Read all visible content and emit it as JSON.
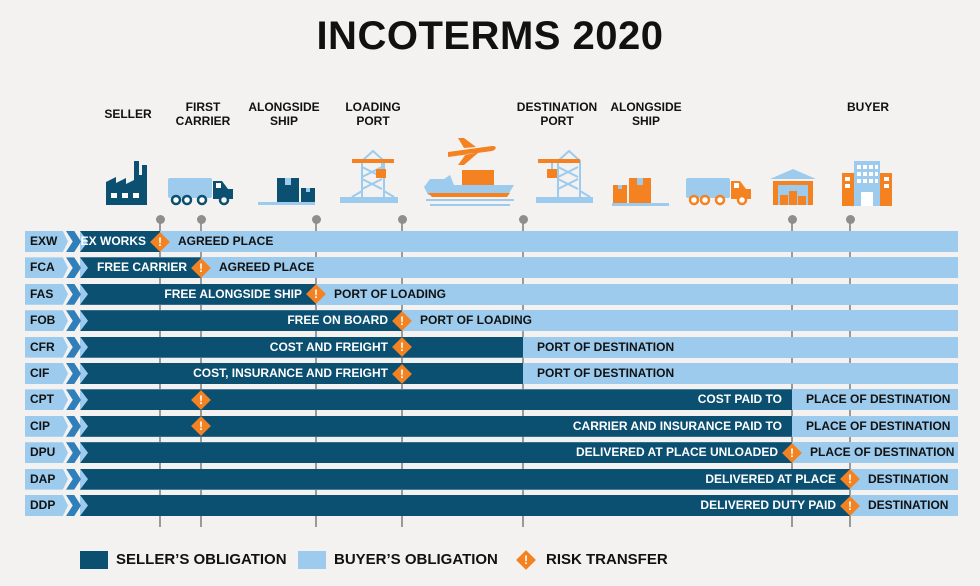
{
  "title": "INCOTERMS 2020",
  "columns": [
    {
      "label": "SELLER",
      "icon": "factory-icon"
    },
    {
      "label": "FIRST\nCARRIER",
      "icon": "truck-icon"
    },
    {
      "label": "ALONGSIDE\nSHIP",
      "icon": "boxes-icon"
    },
    {
      "label": "LOADING\nPORT",
      "icon": "crane-icon"
    },
    {
      "label": "",
      "icon": "ship-plane-icon"
    },
    {
      "label": "DESTINATION\nPORT",
      "icon": "crane-icon"
    },
    {
      "label": "ALONGSIDE\nSHIP",
      "icon": "boxes-icon"
    },
    {
      "label": "",
      "icon": "truck-icon"
    },
    {
      "label": "",
      "icon": "warehouse-icon"
    },
    {
      "label": "BUYER",
      "icon": "building-icon"
    }
  ],
  "rows": [
    {
      "code": "EXW",
      "seller": "EX WORKS",
      "buyer": "AGREED PLACE",
      "seller_until": "SELLER",
      "risk_at": "SELLER"
    },
    {
      "code": "FCA",
      "seller": "FREE CARRIER",
      "buyer": "AGREED PLACE",
      "seller_until": "FIRST CARRIER",
      "risk_at": "FIRST CARRIER"
    },
    {
      "code": "FAS",
      "seller": "FREE ALONGSIDE SHIP",
      "buyer": "PORT OF LOADING",
      "seller_until": "ALONGSIDE SHIP",
      "risk_at": "ALONGSIDE SHIP"
    },
    {
      "code": "FOB",
      "seller": "FREE ON BOARD",
      "buyer": "PORT OF LOADING",
      "seller_until": "LOADING PORT",
      "risk_at": "LOADING PORT"
    },
    {
      "code": "CFR",
      "seller": "COST AND FREIGHT",
      "buyer": "PORT OF DESTINATION",
      "seller_until": "DESTINATION PORT",
      "risk_at": "LOADING PORT"
    },
    {
      "code": "CIF",
      "seller": "COST, INSURANCE AND FREIGHT",
      "buyer": "PORT OF DESTINATION",
      "seller_until": "DESTINATION PORT",
      "risk_at": "LOADING PORT"
    },
    {
      "code": "CPT",
      "seller": "COST PAID TO",
      "buyer": "PLACE OF DESTINATION",
      "seller_until": "WAREHOUSE",
      "risk_at": "FIRST CARRIER"
    },
    {
      "code": "CIP",
      "seller": "CARRIER AND INSURANCE PAID TO",
      "buyer": "PLACE OF DESTINATION",
      "seller_until": "WAREHOUSE",
      "risk_at": "FIRST CARRIER"
    },
    {
      "code": "DPU",
      "seller": "DELIVERED AT PLACE UNLOADED",
      "buyer": "PLACE OF DESTINATION",
      "seller_until": "WAREHOUSE",
      "risk_at": "WAREHOUSE"
    },
    {
      "code": "DAP",
      "seller": "DELIVERED AT PLACE",
      "buyer": "DESTINATION",
      "seller_until": "BUYER",
      "risk_at": "BUYER"
    },
    {
      "code": "DDP",
      "seller": "DELIVERED DUTY PAID",
      "buyer": "DESTINATION",
      "seller_until": "BUYER",
      "risk_at": "BUYER"
    }
  ],
  "legend": {
    "seller": "SELLER’S OBLIGATION",
    "buyer": "BUYER’S OBLIGATION",
    "risk": "RISK TRANSFER",
    "risk_symbol": "!"
  },
  "colors": {
    "seller": "#0b4f71",
    "buyer": "#9ccbee",
    "chevron": "#2f7fba",
    "risk": "#f58220",
    "background": "#f3f2f0"
  }
}
